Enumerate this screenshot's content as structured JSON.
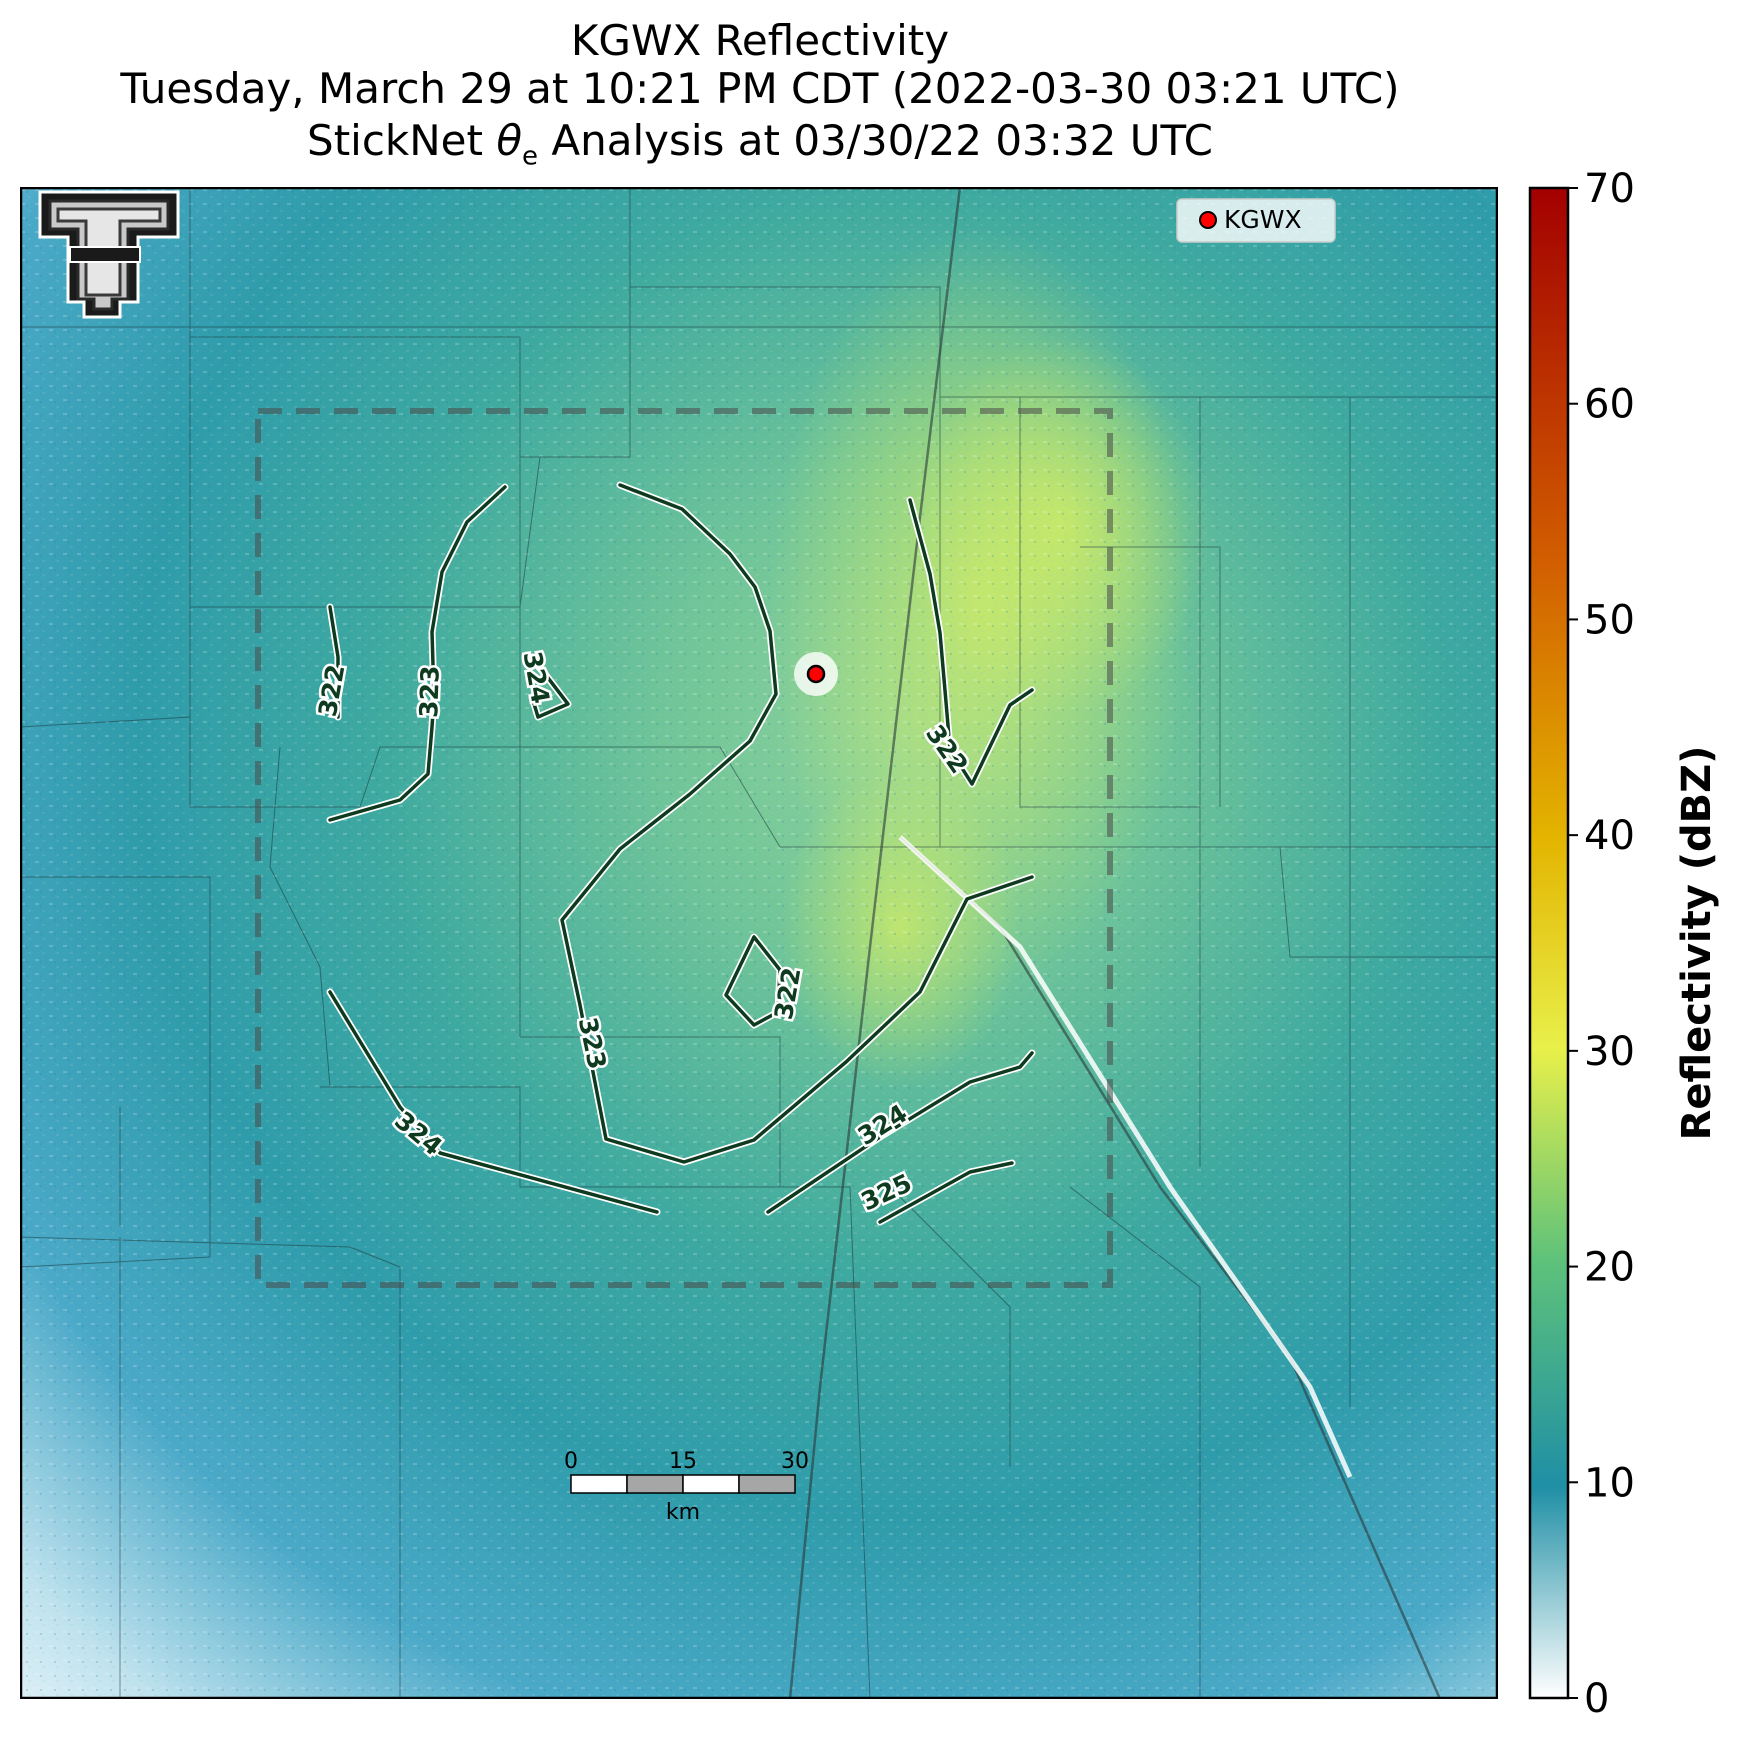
{
  "title": {
    "line1": "KGWX Reflectivity",
    "line2": "Tuesday, March 29 at 10:21 PM CDT (2022-03-30 03:21 UTC)",
    "line3_prefix": "StickNet ",
    "line3_symbol": "θ",
    "line3_sub": "e",
    "line3_suffix": " Analysis at 03/30/22 03:32 UTC"
  },
  "legend": {
    "station": "KGWX"
  },
  "colorbar": {
    "label": "Reflectivity (dBZ)",
    "min": 0,
    "max": 70,
    "ticks": [
      "0",
      "10",
      "20",
      "30",
      "40",
      "50",
      "60",
      "70"
    ],
    "stops": [
      "#ffffff",
      "#1f8fa5",
      "#5ec27a",
      "#e8f04a",
      "#e3b400",
      "#d25f00",
      "#a30000"
    ]
  },
  "scalebar": {
    "ticks": [
      "0",
      "15",
      "30"
    ],
    "unit": "km"
  },
  "contour_labels": [
    "322",
    "323",
    "324",
    "322",
    "322",
    "323",
    "324",
    "324",
    "325"
  ],
  "colors": {
    "contour": "#0e3b1f",
    "station_marker": "#ff0000",
    "radar_base": "#3aa6a0",
    "radar_bright": "#b9e36d",
    "logo_red": "#cc0000"
  }
}
